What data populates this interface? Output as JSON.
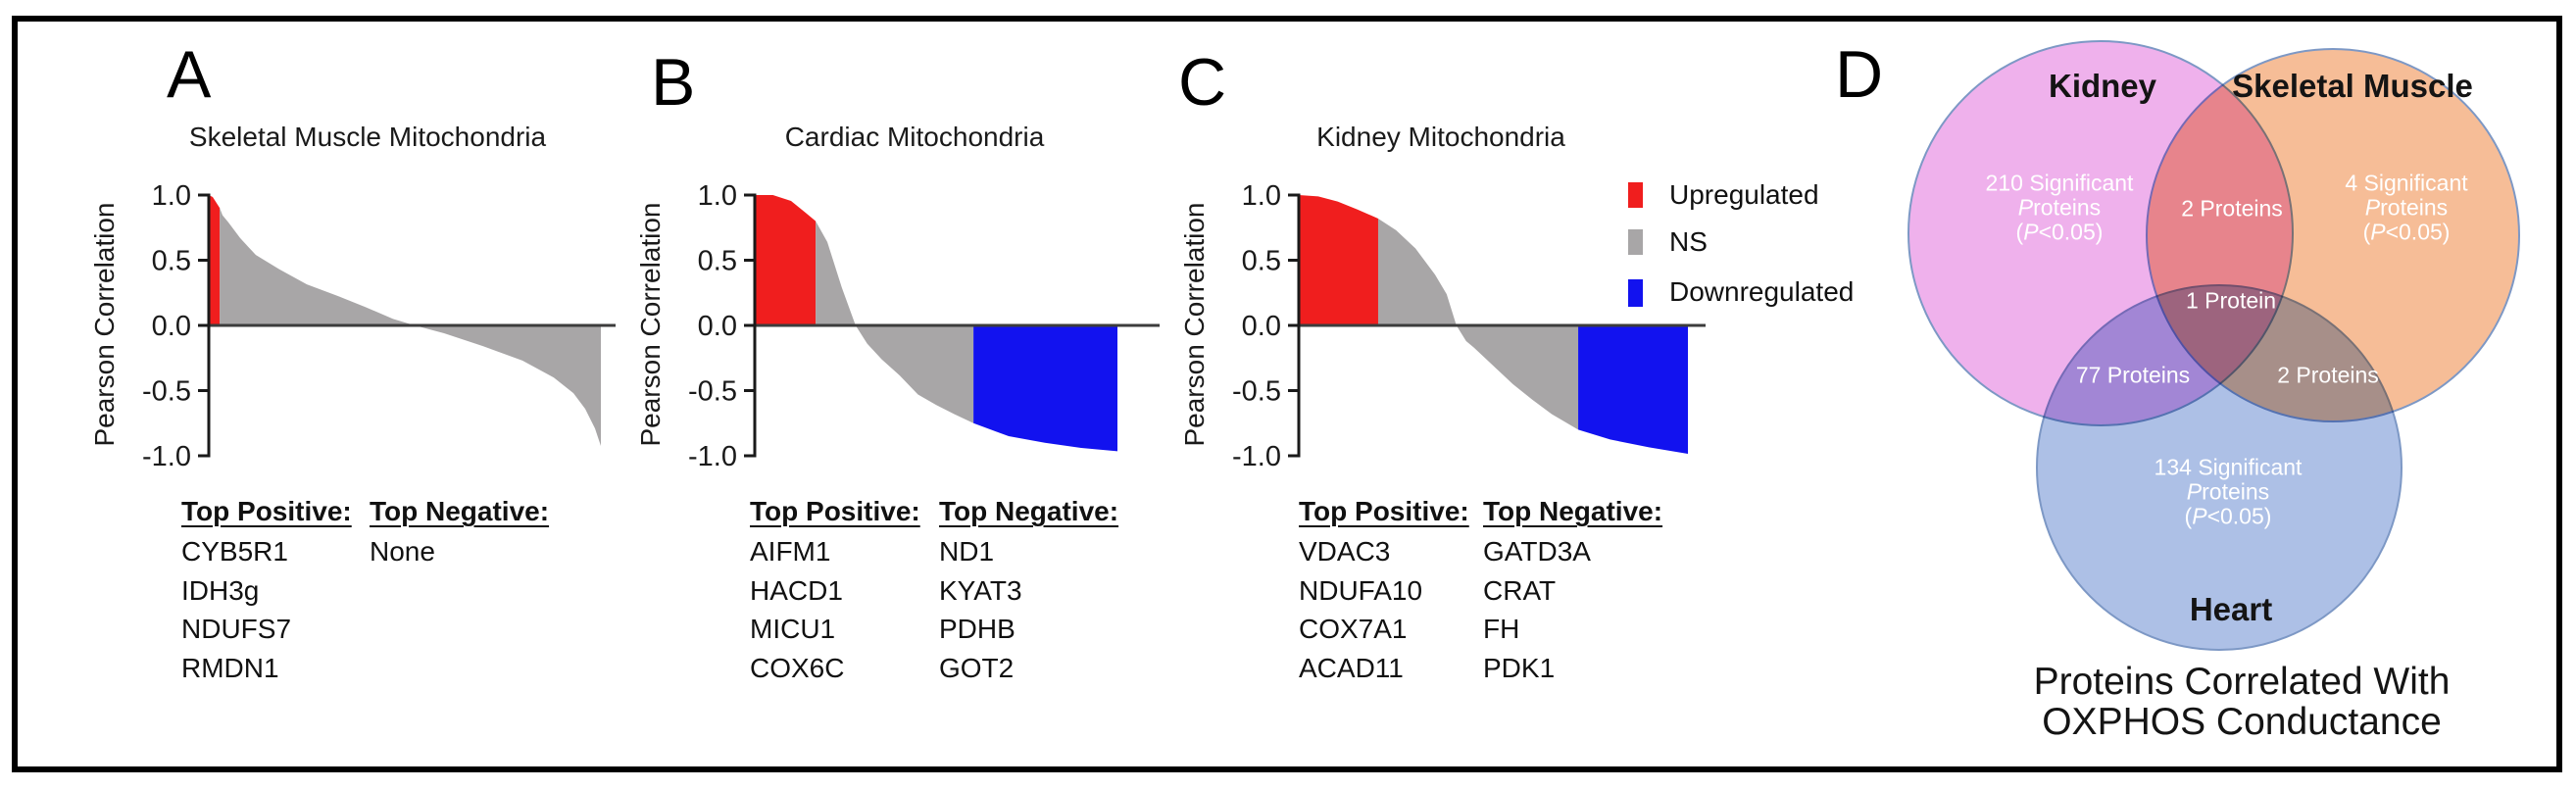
{
  "panel_letters": [
    "A",
    "B",
    "C",
    "D"
  ],
  "gene_list_headers": {
    "positive": "Top Positive:",
    "negative": "Top Negative:"
  },
  "legend": {
    "items": [
      {
        "label": "Upregulated",
        "color": "#F01E1E"
      },
      {
        "label": "NS",
        "color": "#A8A6A7"
      },
      {
        "label": "Downregulated",
        "color": "#1212EF"
      }
    ]
  },
  "chart_data": [
    {
      "id": "A",
      "type": "area",
      "subtype": "ranked-pearson-correlation-waterfall",
      "title": "Skeletal Muscle Mitochondria",
      "ylabel": "Pearson Correlation",
      "ylim": [
        -1,
        1
      ],
      "yticks": [
        "1.0",
        "0.5",
        "0.0",
        "-0.5",
        "-1.0"
      ],
      "grid": false,
      "segment_colors": {
        "upregulated": "#F01E1E",
        "ns": "#A8A6A7",
        "downregulated": "#1212EF"
      },
      "red_end_frac": 0.028,
      "blue_start_frac": null,
      "curve_points": [
        [
          0,
          1.0
        ],
        [
          0.01,
          0.985
        ],
        [
          0.028,
          0.9
        ],
        [
          0.035,
          0.845
        ],
        [
          0.05,
          0.79
        ],
        [
          0.08,
          0.67
        ],
        [
          0.12,
          0.54
        ],
        [
          0.18,
          0.43
        ],
        [
          0.25,
          0.315
        ],
        [
          0.33,
          0.225
        ],
        [
          0.4,
          0.14
        ],
        [
          0.47,
          0.05
        ],
        [
          0.525,
          0
        ],
        [
          0.6,
          -0.06
        ],
        [
          0.7,
          -0.16
        ],
        [
          0.8,
          -0.27
        ],
        [
          0.88,
          -0.4
        ],
        [
          0.93,
          -0.52
        ],
        [
          0.96,
          -0.64
        ],
        [
          0.985,
          -0.79
        ],
        [
          1,
          -0.925
        ]
      ],
      "top_positive": [
        "CYB5R1",
        "IDH3g",
        "NDUFS7",
        "RMDN1"
      ],
      "top_negative": [
        "None"
      ]
    },
    {
      "id": "B",
      "type": "area",
      "subtype": "ranked-pearson-correlation-waterfall",
      "title": "Cardiac Mitochondria",
      "ylabel": "Pearson Correlation",
      "ylim": [
        -1,
        1
      ],
      "yticks": [
        "1.0",
        "0.5",
        "0.0",
        "-0.5",
        "-1.0"
      ],
      "grid": false,
      "segment_colors": {
        "upregulated": "#F01E1E",
        "ns": "#A8A6A7",
        "downregulated": "#1212EF"
      },
      "red_end_frac": 0.168,
      "blue_start_frac": 0.603,
      "curve_points": [
        [
          0,
          1.0
        ],
        [
          0.05,
          1.0
        ],
        [
          0.1,
          0.955
        ],
        [
          0.14,
          0.865
        ],
        [
          0.168,
          0.8
        ],
        [
          0.2,
          0.64
        ],
        [
          0.24,
          0.29
        ],
        [
          0.278,
          0
        ],
        [
          0.31,
          -0.14
        ],
        [
          0.35,
          -0.26
        ],
        [
          0.4,
          -0.385
        ],
        [
          0.45,
          -0.53
        ],
        [
          0.5,
          -0.61
        ],
        [
          0.55,
          -0.68
        ],
        [
          0.603,
          -0.75
        ],
        [
          0.7,
          -0.85
        ],
        [
          0.8,
          -0.9
        ],
        [
          0.9,
          -0.94
        ],
        [
          1,
          -0.965
        ]
      ],
      "top_positive": [
        "AIFM1",
        "HACD1",
        "MICU1",
        "COX6C"
      ],
      "top_negative": [
        "ND1",
        "KYAT3",
        "PDHB",
        "GOT2"
      ]
    },
    {
      "id": "C",
      "type": "area",
      "subtype": "ranked-pearson-correlation-waterfall",
      "title": "Kidney Mitochondria",
      "ylabel": "Pearson Correlation",
      "ylim": [
        -1,
        1
      ],
      "yticks": [
        "1.0",
        "0.5",
        "0.0",
        "-0.5",
        "-1.0"
      ],
      "grid": false,
      "segment_colors": {
        "upregulated": "#F01E1E",
        "ns": "#A8A6A7",
        "downregulated": "#1212EF"
      },
      "red_end_frac": 0.204,
      "blue_start_frac": 0.718,
      "curve_points": [
        [
          0,
          1.0
        ],
        [
          0.05,
          0.99
        ],
        [
          0.1,
          0.95
        ],
        [
          0.15,
          0.89
        ],
        [
          0.204,
          0.82
        ],
        [
          0.25,
          0.73
        ],
        [
          0.3,
          0.59
        ],
        [
          0.35,
          0.39
        ],
        [
          0.38,
          0.24
        ],
        [
          0.405,
          0
        ],
        [
          0.43,
          -0.12
        ],
        [
          0.45,
          -0.17
        ],
        [
          0.5,
          -0.31
        ],
        [
          0.55,
          -0.45
        ],
        [
          0.6,
          -0.57
        ],
        [
          0.65,
          -0.68
        ],
        [
          0.718,
          -0.8
        ],
        [
          0.8,
          -0.875
        ],
        [
          0.9,
          -0.935
        ],
        [
          1,
          -0.985
        ]
      ],
      "top_positive": [
        "VDAC3",
        "NDUFA10",
        "COX7A1",
        "ACAD11"
      ],
      "top_negative": [
        "GATD3A",
        "CRAT",
        "FH",
        "PDK1"
      ]
    },
    {
      "id": "D",
      "type": "venn",
      "caption_lines": [
        "Proteins Correlated With",
        "OXPHOS Conductance"
      ],
      "sets": [
        {
          "name": "Kidney",
          "count_lines": [
            "210 Significant",
            "Proteins",
            "(P<0.05)"
          ],
          "color": "#ECA3E9"
        },
        {
          "name": "Skeletal Muscle",
          "count_lines": [
            "4 Significant",
            "Proteins",
            "(P<0.05)"
          ],
          "color": "#F5B285"
        },
        {
          "name": "Heart",
          "count_lines": [
            "134 Significant",
            "Proteins",
            "(P<0.05)"
          ],
          "color": "#9FB5E2"
        }
      ],
      "overlaps": {
        "kidney_skeletal_muscle": "2 Proteins",
        "kidney_heart": "77 Proteins",
        "skeletal_muscle_heart": "2 Proteins",
        "all_three": "1 Protein"
      },
      "outline_color": "#7D98C5",
      "count_text_color": "#FFFFFF"
    }
  ]
}
